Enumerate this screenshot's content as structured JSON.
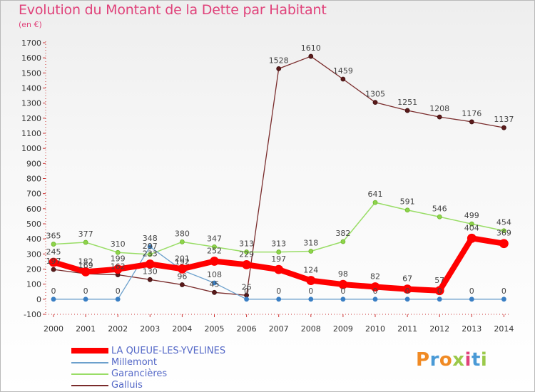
{
  "header": {
    "title": "Evolution du Montant de la Dette par Habitant",
    "unit": "(en €)"
  },
  "logo": {
    "text": "Proxiti"
  },
  "chart_data": {
    "type": "line",
    "title": "Evolution du Montant de la Dette par Habitant",
    "ylabel": "(en €)",
    "xlabel": "",
    "x": [
      "2000",
      "2001",
      "2002",
      "2003",
      "2004",
      "2005",
      "2006",
      "2007",
      "2008",
      "2009",
      "2010",
      "2011",
      "2012",
      "2013",
      "2014"
    ],
    "ylim": [
      -100,
      1700
    ],
    "yticks": [
      -100,
      0,
      100,
      200,
      300,
      400,
      500,
      600,
      700,
      800,
      900,
      1000,
      1100,
      1200,
      1300,
      1400,
      1500,
      1600,
      1700
    ],
    "grid": false,
    "legend_position": "bottom-left",
    "series": [
      {
        "name": "LA QUEUE-LES-YVELINES",
        "color": "#ff0000",
        "values": [
          245,
          182,
          199,
          233,
          201,
          252,
          229,
          197,
          124,
          98,
          82,
          67,
          57,
          404,
          369
        ],
        "labels": [
          "245",
          "182",
          "199",
          "233",
          "201",
          "252",
          "229",
          "197",
          "124",
          "98",
          "82",
          "67",
          "57",
          "404",
          "369"
        ]
      },
      {
        "name": "Millemont",
        "color": "#6ca0cc",
        "values": [
          0,
          0,
          0,
          348,
          192,
          108,
          0,
          0,
          0,
          0,
          0,
          0,
          0,
          0,
          0
        ],
        "labels": [
          "0",
          "0",
          "0",
          "348",
          "192",
          "108",
          "0",
          "0",
          "0",
          "0",
          "0",
          "0",
          "0",
          "0",
          "0"
        ]
      },
      {
        "name": "Garancières",
        "color": "#99dd66",
        "values": [
          365,
          377,
          310,
          297,
          380,
          347,
          313,
          313,
          318,
          382,
          641,
          591,
          546,
          499,
          454
        ],
        "labels": [
          "365",
          "377",
          "310",
          "297",
          "380",
          "347",
          "313",
          "313",
          "318",
          "382",
          "641",
          "591",
          "546",
          "499",
          "454"
        ]
      },
      {
        "name": "Galluis",
        "color": "#7a2c2c",
        "values": [
          197,
          169,
          162,
          130,
          96,
          45,
          26,
          1528,
          1610,
          1459,
          1305,
          1251,
          1208,
          1176,
          1137
        ],
        "labels": [
          "197",
          "169",
          "162",
          "130",
          "96",
          "45",
          "26",
          "1528",
          "1610",
          "1459",
          "1305",
          "1251",
          "1208",
          "1176",
          "1137"
        ]
      }
    ]
  }
}
